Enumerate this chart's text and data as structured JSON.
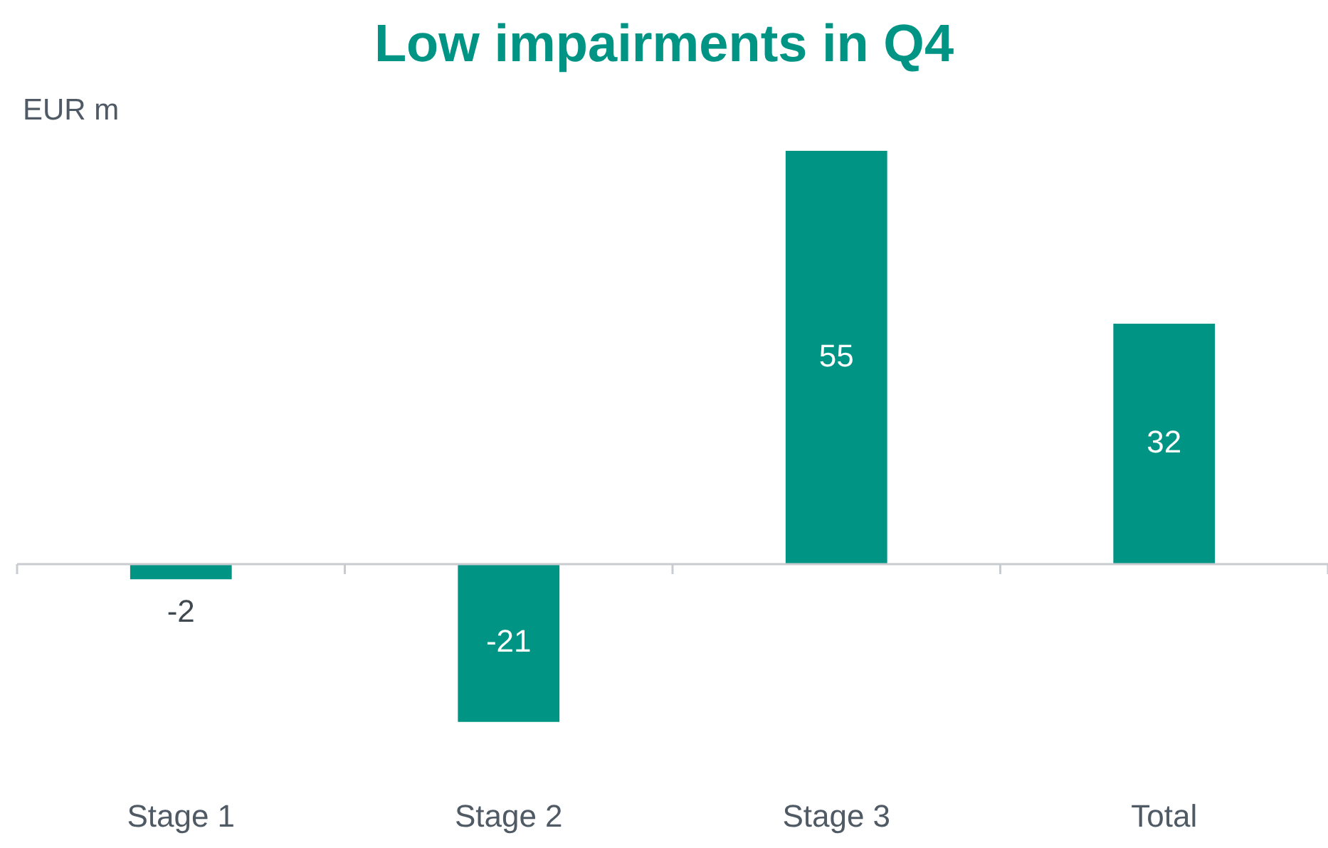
{
  "chart_data": {
    "type": "bar",
    "title": "Low impairments in Q4",
    "ylabel": "EUR m",
    "categories": [
      "Stage 1",
      "Stage 2",
      "Stage 3",
      "Total"
    ],
    "values": [
      -2,
      -21,
      55,
      32
    ],
    "color": "#009485",
    "data_labels": true,
    "grid": false,
    "legend": false
  }
}
